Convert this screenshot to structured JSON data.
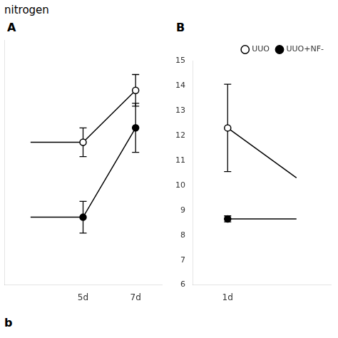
{
  "chart_data": [
    {
      "type": "line",
      "categories": [
        null,
        "5d",
        "7d"
      ],
      "series": [
        {
          "color": "#000000",
          "marker": "circle_open",
          "values": [
            12.3,
            12.3,
            14.1
          ],
          "yerr": [
            null,
            0.5,
            0.55
          ]
        },
        {
          "color": "#000000",
          "marker": "circle",
          "values": [
            9.7,
            9.7,
            12.8
          ],
          "yerr": [
            null,
            0.55,
            0.85
          ]
        }
      ],
      "ylim": [
        7.35,
        15.85
      ],
      "tick_labels": "x",
      "grid": false,
      "annotations": [
        "nitrogen",
        "A",
        "b"
      ]
    },
    {
      "type": "line",
      "categories": [
        "1d",
        null
      ],
      "series": [
        {
          "name": "UUO",
          "color": "#000000",
          "marker": "circle_open",
          "values": [
            12.3,
            10.3
          ],
          "yerr": [
            1.75,
            null
          ]
        },
        {
          "name": "UUO+NF-",
          "color": "#000000",
          "marker": "circle",
          "values": [
            8.65,
            8.65
          ],
          "yerr": [
            0.12,
            null
          ]
        }
      ],
      "ylim": [
        6,
        15
      ],
      "yticks": [
        6,
        7,
        8,
        9,
        10,
        11,
        12,
        13,
        14,
        15
      ],
      "grid": false,
      "legend": "upper right",
      "annotations": [
        "B"
      ]
    }
  ]
}
